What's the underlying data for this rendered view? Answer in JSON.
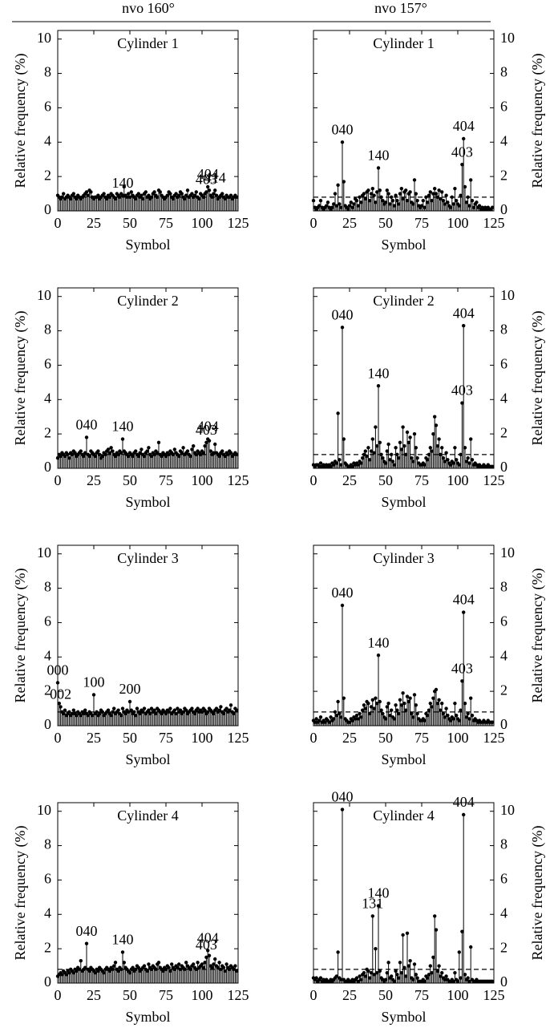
{
  "columns": [
    "nvo 160°",
    "nvo 157°"
  ],
  "chart_data": [
    {
      "type": "stem",
      "title": "Cylinder 1",
      "xlabel": "Symbol",
      "ylabel": "Relative frequency (%)",
      "yaxis_side": "left",
      "xlim": [
        0,
        125
      ],
      "ylim": [
        0,
        10.5
      ],
      "xticks": [
        0,
        25,
        50,
        75,
        100,
        125
      ],
      "yticks": [
        0,
        2,
        4,
        6,
        8,
        10
      ],
      "reference_line": 0.8,
      "color": "#000000",
      "values": [
        0.9,
        0.8,
        0.7,
        0.8,
        1.0,
        0.7,
        0.8,
        0.9,
        0.8,
        0.7,
        0.9,
        1.0,
        0.8,
        0.7,
        0.9,
        0.8,
        0.7,
        0.8,
        0.9,
        1.0,
        1.1,
        0.9,
        1.2,
        1.1,
        0.8,
        0.7,
        0.8,
        0.8,
        0.9,
        0.7,
        0.8,
        0.9,
        1.0,
        0.8,
        0.7,
        0.9,
        0.8,
        1.0,
        0.9,
        0.8,
        0.7,
        1.0,
        0.9,
        0.8,
        1.0,
        0.9,
        1.4,
        0.9,
        0.8,
        1.0,
        0.8,
        1.1,
        0.9,
        0.8,
        0.7,
        0.9,
        1.0,
        0.8,
        0.9,
        0.7,
        1.0,
        1.1,
        0.8,
        0.9,
        0.7,
        0.8,
        1.0,
        1.1,
        0.9,
        0.8,
        1.2,
        1.1,
        0.9,
        0.8,
        0.7,
        0.8,
        0.9,
        1.1,
        1.0,
        0.8,
        0.7,
        0.9,
        1.0,
        0.8,
        0.9,
        1.1,
        1.0,
        0.8,
        0.7,
        0.9,
        1.2,
        0.8,
        0.9,
        1.0,
        0.8,
        0.9,
        1.1,
        0.8,
        0.7,
        1.0,
        0.9,
        0.8,
        1.0,
        1.1,
        1.4,
        1.2,
        0.9,
        0.8,
        1.0,
        1.2,
        0.9,
        0.7,
        0.8,
        0.9,
        1.0,
        0.8,
        0.7,
        0.9,
        0.8,
        0.8,
        0.9,
        0.7,
        0.8,
        0.9,
        0.8
      ],
      "annotations": [
        {
          "label": "140",
          "x": 45
        },
        {
          "label": "403",
          "x": 103
        },
        {
          "label": "404",
          "x": 104
        },
        {
          "label": "414",
          "x": 109
        }
      ]
    },
    {
      "type": "stem",
      "title": "Cylinder 1",
      "xlabel": "Symbol",
      "ylabel": "Relative frequency (%)",
      "yaxis_side": "right",
      "xlim": [
        0,
        125
      ],
      "ylim": [
        0,
        10.5
      ],
      "xticks": [
        0,
        25,
        50,
        75,
        100,
        125
      ],
      "yticks": [
        0,
        2,
        4,
        6,
        8,
        10
      ],
      "reference_line": 0.8,
      "color": "#000000",
      "values": [
        0.6,
        0.2,
        0.1,
        0.2,
        0.3,
        0.6,
        0.2,
        0.1,
        0.2,
        0.3,
        0.5,
        0.2,
        0.1,
        0.2,
        0.4,
        1.0,
        0.3,
        1.5,
        0.4,
        0.2,
        4.0,
        1.7,
        0.3,
        0.2,
        0.1,
        0.3,
        0.5,
        0.2,
        0.4,
        0.7,
        0.6,
        0.3,
        0.8,
        0.5,
        0.9,
        1.0,
        0.7,
        1.1,
        1.2,
        0.6,
        1.0,
        1.3,
        0.9,
        0.5,
        1.1,
        2.5,
        1.2,
        0.8,
        0.6,
        0.4,
        0.5,
        1.2,
        1.0,
        0.4,
        0.8,
        0.6,
        0.3,
        0.9,
        0.6,
        0.4,
        1.0,
        1.3,
        0.7,
        1.1,
        1.2,
        0.6,
        1.0,
        1.1,
        0.5,
        0.4,
        1.8,
        1.0,
        0.6,
        0.3,
        0.2,
        0.3,
        0.6,
        0.2,
        0.8,
        0.5,
        0.9,
        1.1,
        0.6,
        1.0,
        1.3,
        1.0,
        0.8,
        1.2,
        0.7,
        1.1,
        0.6,
        0.4,
        0.9,
        0.5,
        0.3,
        0.2,
        0.8,
        0.4,
        1.3,
        0.6,
        0.4,
        0.3,
        0.9,
        2.7,
        4.2,
        1.4,
        0.5,
        0.8,
        0.3,
        1.8,
        0.6,
        0.2,
        0.4,
        0.5,
        0.2,
        0.3,
        0.1,
        0.2,
        0.1,
        0.2,
        0.1,
        0.2,
        0.1,
        0.1,
        0.2
      ],
      "annotations": [
        {
          "label": "040",
          "x": 20
        },
        {
          "label": "140",
          "x": 45
        },
        {
          "label": "403",
          "x": 103
        },
        {
          "label": "404",
          "x": 104
        }
      ]
    },
    {
      "type": "stem",
      "title": "Cylinder 2",
      "xlabel": "Symbol",
      "ylabel": "Relative frequency (%)",
      "yaxis_side": "left",
      "xlim": [
        0,
        125
      ],
      "ylim": [
        0,
        10.5
      ],
      "xticks": [
        0,
        25,
        50,
        75,
        100,
        125
      ],
      "yticks": [
        0,
        2,
        4,
        6,
        8,
        10
      ],
      "reference_line": 0.8,
      "color": "#000000",
      "values": [
        0.6,
        0.8,
        0.7,
        0.9,
        0.8,
        0.7,
        0.9,
        0.8,
        0.6,
        0.9,
        0.8,
        1.0,
        0.9,
        0.7,
        0.8,
        0.9,
        1.0,
        0.8,
        0.7,
        0.9,
        1.8,
        0.8,
        0.7,
        1.0,
        0.9,
        0.8,
        0.7,
        0.9,
        1.0,
        0.8,
        0.6,
        0.7,
        0.9,
        0.8,
        1.0,
        1.1,
        0.9,
        1.2,
        1.0,
        0.8,
        0.7,
        0.9,
        0.8,
        1.0,
        0.9,
        1.7,
        1.0,
        0.9,
        0.8,
        0.7,
        0.9,
        0.8,
        0.7,
        0.9,
        1.0,
        0.8,
        0.7,
        0.9,
        1.1,
        0.8,
        0.7,
        0.9,
        1.0,
        1.2,
        0.8,
        0.7,
        0.9,
        0.8,
        1.0,
        0.9,
        1.5,
        0.8,
        0.7,
        0.9,
        0.8,
        0.7,
        0.9,
        0.8,
        1.0,
        0.9,
        0.8,
        1.1,
        0.9,
        0.8,
        0.7,
        1.0,
        0.9,
        1.2,
        0.8,
        0.9,
        1.0,
        0.8,
        0.7,
        1.1,
        1.3,
        0.9,
        0.8,
        1.0,
        0.9,
        0.8,
        1.0,
        0.9,
        1.3,
        1.5,
        1.7,
        1.6,
        1.0,
        0.8,
        0.9,
        1.4,
        0.9,
        0.8,
        0.7,
        0.9,
        1.0,
        0.8,
        0.7,
        0.9,
        0.8,
        1.0,
        0.9,
        0.7,
        0.8,
        0.9,
        0.8
      ],
      "annotations": [
        {
          "label": "040",
          "x": 20
        },
        {
          "label": "140",
          "x": 45
        },
        {
          "label": "403",
          "x": 103
        },
        {
          "label": "404",
          "x": 104
        }
      ]
    },
    {
      "type": "stem",
      "title": "Cylinder 2",
      "xlabel": "Symbol",
      "ylabel": "Relative frequency (%)",
      "yaxis_side": "right",
      "xlim": [
        0,
        125
      ],
      "ylim": [
        0,
        10.5
      ],
      "xticks": [
        0,
        25,
        50,
        75,
        100,
        125
      ],
      "yticks": [
        0,
        2,
        4,
        6,
        8,
        10
      ],
      "reference_line": 0.8,
      "color": "#000000",
      "values": [
        0.2,
        0.1,
        0.2,
        0.2,
        0.1,
        0.3,
        0.1,
        0.2,
        0.1,
        0.2,
        0.1,
        0.2,
        0.1,
        0.3,
        0.2,
        0.4,
        0.3,
        3.2,
        0.5,
        0.2,
        8.2,
        1.7,
        0.3,
        0.2,
        0.1,
        0.1,
        0.2,
        0.1,
        0.3,
        0.2,
        0.3,
        0.2,
        0.4,
        0.3,
        0.6,
        0.8,
        1.0,
        0.7,
        1.2,
        0.5,
        1.0,
        1.7,
        0.9,
        2.4,
        1.3,
        4.8,
        1.5,
        0.8,
        0.6,
        0.4,
        0.3,
        1.0,
        1.4,
        0.5,
        0.8,
        0.4,
        0.2,
        1.2,
        0.8,
        0.6,
        1.5,
        1.1,
        2.4,
        1.3,
        0.8,
        2.1,
        1.5,
        1.8,
        0.6,
        0.4,
        2.0,
        1.2,
        0.6,
        0.3,
        0.2,
        0.2,
        0.3,
        0.2,
        0.6,
        0.5,
        0.8,
        1.2,
        1.0,
        2.0,
        3.0,
        2.5,
        1.3,
        1.7,
        0.8,
        1.2,
        0.6,
        0.4,
        0.9,
        0.5,
        0.3,
        0.2,
        0.4,
        0.3,
        1.2,
        0.5,
        0.3,
        0.2,
        0.8,
        3.8,
        8.3,
        1.2,
        0.4,
        0.6,
        0.3,
        1.7,
        0.5,
        0.2,
        0.3,
        0.2,
        0.1,
        0.2,
        0.1,
        0.1,
        0.2,
        0.1,
        0.1,
        0.2,
        0.1,
        0.1,
        0.1
      ],
      "annotations": [
        {
          "label": "040",
          "x": 20
        },
        {
          "label": "140",
          "x": 45
        },
        {
          "label": "403",
          "x": 103
        },
        {
          "label": "404",
          "x": 104
        }
      ]
    },
    {
      "type": "stem",
      "title": "Cylinder 3",
      "xlabel": "Symbol",
      "ylabel": "Relative frequency (%)",
      "yaxis_side": "left",
      "xlim": [
        0,
        125
      ],
      "ylim": [
        0,
        10.5
      ],
      "xticks": [
        0,
        25,
        50,
        75,
        100,
        125
      ],
      "yticks": [
        0,
        2,
        4,
        6,
        8,
        10
      ],
      "reference_line": 0.8,
      "color": "#000000",
      "values": [
        2.5,
        1.3,
        1.1,
        0.8,
        0.7,
        0.9,
        0.6,
        0.7,
        0.8,
        0.6,
        0.7,
        0.9,
        0.7,
        0.6,
        0.8,
        0.7,
        0.6,
        0.8,
        0.7,
        0.9,
        0.7,
        0.6,
        0.8,
        0.7,
        0.6,
        1.8,
        0.7,
        0.8,
        0.6,
        0.7,
        0.9,
        0.8,
        0.6,
        0.7,
        0.8,
        0.9,
        0.7,
        0.6,
        0.8,
        1.0,
        0.7,
        0.8,
        0.9,
        0.7,
        0.6,
        1.0,
        0.8,
        0.7,
        0.9,
        0.8,
        1.4,
        0.9,
        0.7,
        0.8,
        0.6,
        1.0,
        0.8,
        0.7,
        0.9,
        0.8,
        1.0,
        0.7,
        0.8,
        0.9,
        0.7,
        1.0,
        0.8,
        0.9,
        0.7,
        1.0,
        0.9,
        0.8,
        0.7,
        0.9,
        0.8,
        0.7,
        0.9,
        0.8,
        1.0,
        0.7,
        0.8,
        0.9,
        0.7,
        1.0,
        0.8,
        0.9,
        0.7,
        0.8,
        1.0,
        0.9,
        0.7,
        0.8,
        0.9,
        1.0,
        0.8,
        0.7,
        0.9,
        1.0,
        0.8,
        0.9,
        0.8,
        1.0,
        0.9,
        0.7,
        0.8,
        1.0,
        0.9,
        0.8,
        0.7,
        0.9,
        1.0,
        0.8,
        0.9,
        1.1,
        0.8,
        0.7,
        0.9,
        1.0,
        0.8,
        0.9,
        1.2,
        0.8,
        0.7,
        1.0,
        0.9
      ],
      "annotations": [
        {
          "label": "000",
          "x": 0
        },
        {
          "label": "002",
          "x": 2
        },
        {
          "label": "100",
          "x": 25
        },
        {
          "label": "200",
          "x": 50
        }
      ]
    },
    {
      "type": "stem",
      "title": "Cylinder 3",
      "xlabel": "Symbol",
      "ylabel": "Relative frequency (%)",
      "yaxis_side": "right",
      "xlim": [
        0,
        125
      ],
      "ylim": [
        0,
        10.5
      ],
      "xticks": [
        0,
        25,
        50,
        75,
        100,
        125
      ],
      "yticks": [
        0,
        2,
        4,
        6,
        8,
        10
      ],
      "reference_line": 0.8,
      "color": "#000000",
      "values": [
        0.3,
        0.2,
        0.4,
        0.2,
        0.3,
        0.5,
        0.2,
        0.3,
        0.2,
        0.4,
        0.3,
        0.2,
        0.5,
        0.3,
        0.4,
        0.8,
        0.6,
        1.4,
        0.7,
        0.5,
        7.0,
        1.6,
        0.4,
        0.3,
        0.2,
        0.2,
        0.4,
        0.3,
        0.5,
        0.4,
        0.6,
        0.4,
        0.7,
        0.5,
        0.9,
        1.2,
        1.0,
        1.4,
        1.3,
        0.7,
        1.1,
        1.5,
        1.0,
        1.6,
        1.3,
        4.1,
        1.4,
        0.9,
        0.7,
        0.5,
        0.4,
        1.1,
        1.3,
        0.6,
        0.9,
        0.5,
        0.4,
        1.2,
        0.9,
        0.7,
        1.5,
        1.2,
        1.9,
        1.3,
        0.9,
        1.7,
        1.4,
        1.6,
        0.7,
        0.5,
        1.8,
        1.2,
        0.7,
        0.4,
        0.3,
        0.3,
        0.4,
        0.3,
        0.7,
        0.6,
        0.9,
        1.3,
        1.1,
        1.6,
        2.0,
        2.1,
        1.3,
        1.5,
        0.9,
        1.3,
        0.7,
        0.5,
        1.0,
        0.6,
        0.4,
        0.3,
        0.5,
        0.4,
        1.3,
        0.6,
        0.4,
        0.3,
        0.9,
        2.6,
        6.6,
        1.3,
        0.5,
        0.7,
        0.4,
        1.6,
        0.6,
        0.3,
        0.4,
        0.3,
        0.2,
        0.3,
        0.2,
        0.2,
        0.3,
        0.2,
        0.2,
        0.3,
        0.2,
        0.2,
        0.2
      ],
      "annotations": [
        {
          "label": "040",
          "x": 20
        },
        {
          "label": "140",
          "x": 45
        },
        {
          "label": "403",
          "x": 103
        },
        {
          "label": "404",
          "x": 104
        }
      ]
    },
    {
      "type": "stem",
      "title": "Cylinder 4",
      "xlabel": "Symbol",
      "ylabel": "Relative frequency (%)",
      "yaxis_side": "left",
      "xlim": [
        0,
        125
      ],
      "ylim": [
        0,
        10.5
      ],
      "xticks": [
        0,
        25,
        50,
        75,
        100,
        125
      ],
      "yticks": [
        0,
        2,
        4,
        6,
        8,
        10
      ],
      "reference_line": 0.8,
      "color": "#000000",
      "values": [
        0.4,
        0.5,
        0.6,
        0.5,
        0.7,
        0.6,
        0.5,
        0.7,
        0.6,
        0.8,
        0.7,
        0.6,
        0.8,
        0.7,
        0.9,
        0.8,
        1.3,
        0.7,
        0.8,
        0.9,
        2.3,
        0.8,
        0.7,
        0.9,
        0.8,
        0.7,
        0.6,
        0.8,
        0.7,
        0.9,
        0.8,
        0.7,
        0.6,
        0.8,
        0.9,
        0.8,
        0.7,
        0.9,
        0.8,
        1.0,
        1.2,
        0.8,
        0.7,
        0.9,
        0.8,
        1.8,
        1.2,
        0.9,
        0.8,
        0.7,
        0.6,
        0.8,
        0.9,
        0.7,
        0.8,
        1.0,
        0.9,
        0.7,
        0.8,
        0.9,
        1.0,
        0.8,
        0.7,
        1.1,
        0.9,
        0.8,
        1.0,
        0.9,
        0.8,
        1.1,
        1.2,
        0.9,
        0.8,
        0.7,
        0.9,
        0.8,
        1.0,
        0.9,
        0.7,
        1.1,
        0.9,
        0.8,
        1.0,
        0.9,
        1.1,
        0.8,
        1.0,
        0.9,
        0.8,
        1.2,
        1.0,
        0.9,
        0.8,
        1.0,
        1.1,
        0.9,
        0.8,
        1.2,
        0.9,
        1.0,
        1.1,
        0.9,
        1.2,
        1.5,
        1.9,
        1.6,
        1.0,
        0.9,
        1.1,
        1.4,
        1.0,
        0.9,
        1.2,
        0.8,
        1.0,
        0.9,
        0.7,
        1.1,
        0.9,
        0.8,
        1.0,
        0.9,
        0.8,
        1.0,
        0.7
      ],
      "annotations": [
        {
          "label": "040",
          "x": 20
        },
        {
          "label": "140",
          "x": 45
        },
        {
          "label": "403",
          "x": 103
        },
        {
          "label": "404",
          "x": 104
        }
      ]
    },
    {
      "type": "stem",
      "title": "Cylinder 4",
      "xlabel": "Symbol",
      "ylabel": "Relative frequency (%)",
      "yaxis_side": "right",
      "xlim": [
        0,
        125
      ],
      "ylim": [
        0,
        10.5
      ],
      "xticks": [
        0,
        25,
        50,
        75,
        100,
        125
      ],
      "yticks": [
        0,
        2,
        4,
        6,
        8,
        10
      ],
      "reference_line": 0.8,
      "color": "#000000",
      "values": [
        0.3,
        0.2,
        0.3,
        0.1,
        0.2,
        0.3,
        0.1,
        0.2,
        0.1,
        0.2,
        0.1,
        0.1,
        0.2,
        0.1,
        0.2,
        0.3,
        0.4,
        1.8,
        0.3,
        0.2,
        10.1,
        0.2,
        0.1,
        0.1,
        0.2,
        0.1,
        0.1,
        0.2,
        0.1,
        0.2,
        0.3,
        0.1,
        0.4,
        0.2,
        0.5,
        0.6,
        0.4,
        0.8,
        0.7,
        0.3,
        0.6,
        3.9,
        0.5,
        2.0,
        0.6,
        4.5,
        0.7,
        0.3,
        0.2,
        0.1,
        0.2,
        0.6,
        1.2,
        0.3,
        0.4,
        0.2,
        0.1,
        0.7,
        0.5,
        0.3,
        1.2,
        0.6,
        2.8,
        0.9,
        0.4,
        2.9,
        1.0,
        1.3,
        0.3,
        0.2,
        1.1,
        0.5,
        0.3,
        0.1,
        0.1,
        0.1,
        0.2,
        0.1,
        0.4,
        0.3,
        0.5,
        1.0,
        0.6,
        1.5,
        3.9,
        3.1,
        0.7,
        1.0,
        0.4,
        0.6,
        0.3,
        0.2,
        0.4,
        0.2,
        0.1,
        0.1,
        0.2,
        0.1,
        0.6,
        0.2,
        0.1,
        1.8,
        0.3,
        3.0,
        9.8,
        0.5,
        0.2,
        0.3,
        0.1,
        2.1,
        0.2,
        0.1,
        0.1,
        0.2,
        0.1,
        0.1,
        0.1,
        0.1,
        0.1,
        0.1,
        0.1,
        0.1,
        0.1,
        0.1,
        0.1
      ],
      "annotations": [
        {
          "label": "040",
          "x": 20
        },
        {
          "label": "131",
          "x": 41
        },
        {
          "label": "140",
          "x": 45
        },
        {
          "label": "404",
          "x": 104
        }
      ]
    }
  ]
}
